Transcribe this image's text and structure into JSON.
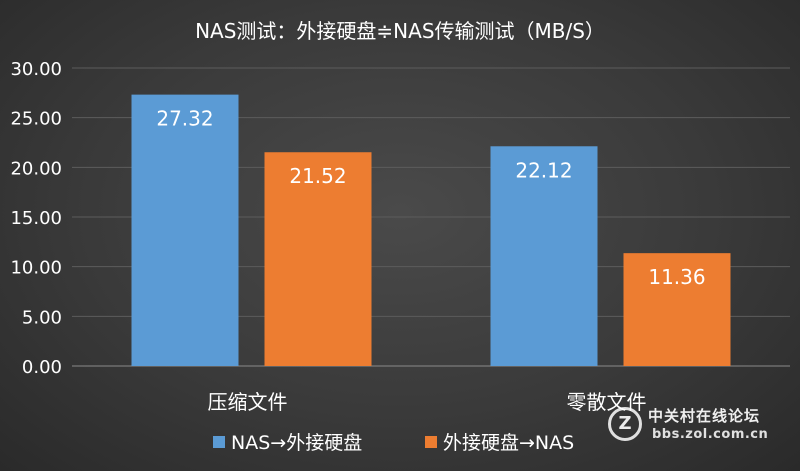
{
  "chart_data": {
    "type": "bar",
    "title": "NAS测试：外接硬盘≑NAS传输测试（MB/S）",
    "categories": [
      "压缩文件",
      "零散文件"
    ],
    "series": [
      {
        "name": "NAS→外接硬盘",
        "values": [
          27.32,
          22.12
        ],
        "color": "#5b9bd5"
      },
      {
        "name": "外接硬盘→NAS",
        "values": [
          21.52,
          11.36
        ],
        "color": "#ed7d31"
      }
    ],
    "ylim": [
      0,
      30
    ],
    "yticks": [
      "0.00",
      "5.00",
      "10.00",
      "15.00",
      "20.00",
      "25.00",
      "30.00"
    ],
    "data_labels": [
      [
        "27.32",
        "22.12"
      ],
      [
        "21.52",
        "11.36"
      ]
    ],
    "grid": true,
    "legend": "bottom",
    "xlabel": "",
    "ylabel": ""
  },
  "watermark": {
    "icon": "Z",
    "title": "中关村在线论坛",
    "url": "bbs.zol.com.cn"
  }
}
